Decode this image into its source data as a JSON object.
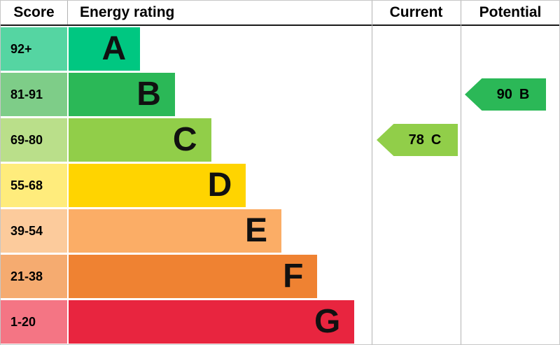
{
  "header": {
    "score": "Score",
    "rating": "Energy rating",
    "current": "Current",
    "potential": "Potential"
  },
  "bands": [
    {
      "score": "92+",
      "letter": "A",
      "color": "#00c781",
      "tint": "#55d5a2",
      "width_pct": 23.6
    },
    {
      "score": "81-91",
      "letter": "B",
      "color": "#2bb857",
      "tint": "#7ecd88",
      "width_pct": 35.1
    },
    {
      "score": "69-80",
      "letter": "C",
      "color": "#91ce49",
      "tint": "#badf8a",
      "width_pct": 47.0
    },
    {
      "score": "55-68",
      "letter": "D",
      "color": "#ffd400",
      "tint": "#ffec7c",
      "width_pct": 58.5
    },
    {
      "score": "39-54",
      "letter": "E",
      "color": "#fbad66",
      "tint": "#fccb9c",
      "width_pct": 70.2
    },
    {
      "score": "21-38",
      "letter": "F",
      "color": "#ef8232",
      "tint": "#f5ab70",
      "width_pct": 82.1
    },
    {
      "score": "1-20",
      "letter": "G",
      "color": "#e8253f",
      "tint": "#f47584",
      "width_pct": 94.3
    }
  ],
  "current": {
    "value": "78",
    "letter": "C",
    "band_index": 2,
    "color": "#91ce49"
  },
  "potential": {
    "value": "90",
    "letter": "B",
    "band_index": 1,
    "color": "#2bb857"
  },
  "chart_data": {
    "type": "bar",
    "title": "Energy rating",
    "orientation": "horizontal",
    "categories": [
      "A",
      "B",
      "C",
      "D",
      "E",
      "F",
      "G"
    ],
    "score_ranges": [
      "92+",
      "81-91",
      "69-80",
      "55-68",
      "39-54",
      "21-38",
      "1-20"
    ],
    "bar_lengths_pct": [
      23.6,
      35.1,
      47.0,
      58.5,
      70.2,
      82.1,
      94.3
    ],
    "colors": [
      "#00c781",
      "#2bb857",
      "#91ce49",
      "#ffd400",
      "#fbad66",
      "#ef8232",
      "#e8253f"
    ],
    "columns": [
      "Score",
      "Energy rating",
      "Current",
      "Potential"
    ],
    "current": {
      "score": 78,
      "rating": "C"
    },
    "potential": {
      "score": 90,
      "rating": "B"
    }
  }
}
